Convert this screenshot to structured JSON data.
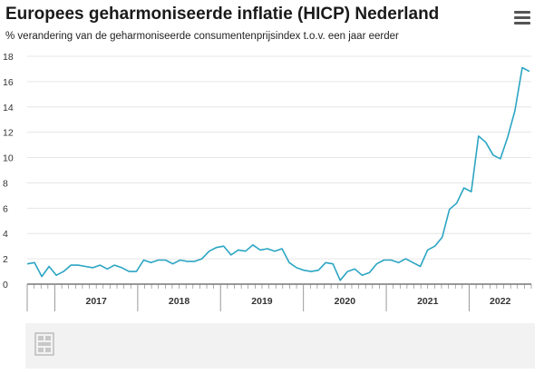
{
  "header": {
    "title": "Europees geharmoniseerde inflatie (HICP) Nederland",
    "subtitle": "% verandering van de geharmoniseerde consumentenprijsindex t.o.v. een jaar eerder"
  },
  "menu": {
    "icon": "hamburger-menu-icon"
  },
  "logo": {
    "icon": "cbs-logo-icon"
  },
  "colors": {
    "line": "#2ba5c3",
    "grid": "#e6e6e6",
    "axis": "#333333",
    "band": "#f2f2f2"
  },
  "chart_data": {
    "type": "line",
    "title": "Europees geharmoniseerde inflatie (HICP) Nederland",
    "subtitle": "% verandering van de geharmoniseerde consumentenprijsindex t.o.v. een jaar eerder",
    "xlabel": "",
    "ylabel": "",
    "ylim": [
      0,
      18
    ],
    "yticks": [
      0,
      2,
      4,
      6,
      8,
      10,
      12,
      14,
      16,
      18
    ],
    "grid": "horizontal",
    "legend": "none",
    "x_start": "2016-09",
    "x_end": "2022-10",
    "year_labels": [
      "2017",
      "2018",
      "2019",
      "2020",
      "2021",
      "2022"
    ],
    "series": [
      {
        "values": [
          1.6,
          1.7,
          0.6,
          1.4,
          0.7,
          1.0,
          1.5,
          1.5,
          1.4,
          1.3,
          1.5,
          1.2,
          1.5,
          1.3,
          1.0,
          1.0,
          1.9,
          1.7,
          1.9,
          1.9,
          1.6,
          1.9,
          1.8,
          1.8,
          2.0,
          2.6,
          2.9,
          3.0,
          2.3,
          2.7,
          2.6,
          3.1,
          2.7,
          2.8,
          2.6,
          2.8,
          1.7,
          1.3,
          1.1,
          1.0,
          1.1,
          1.7,
          1.6,
          0.3,
          1.0,
          1.2,
          0.7,
          0.9,
          1.6,
          1.9,
          1.9,
          1.7,
          2.0,
          1.7,
          1.4,
          2.7,
          3.0,
          3.7,
          5.9,
          6.4,
          7.6,
          7.3,
          11.7,
          11.2,
          10.2,
          9.9,
          11.6,
          13.7,
          17.1,
          16.8
        ]
      }
    ]
  }
}
